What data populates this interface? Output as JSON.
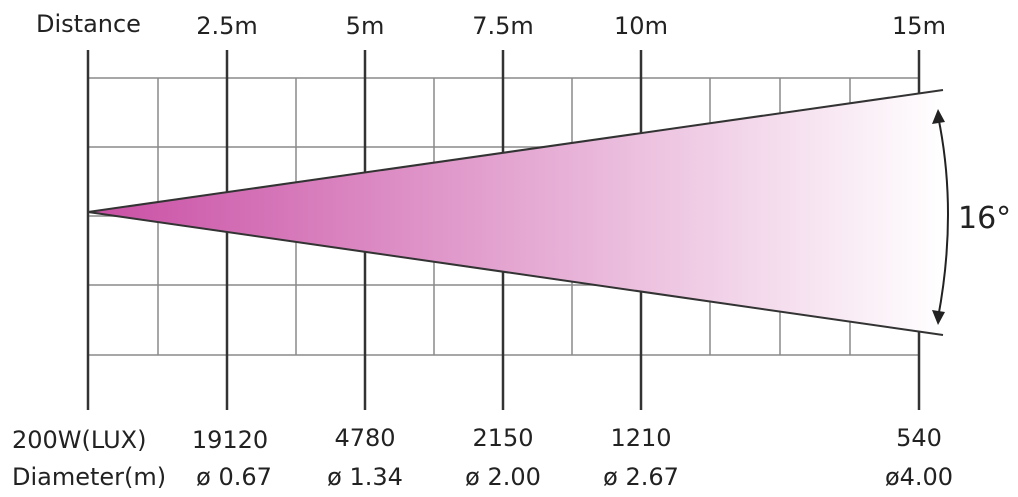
{
  "distance_label": "Distance",
  "distance_marks": [
    "2.5m",
    "5m",
    "7.5m",
    "10m",
    "15m"
  ],
  "lux_label": "200W(LUX)",
  "lux_values": [
    "19120",
    "4780",
    "2150",
    "1210",
    "540"
  ],
  "diameter_label": "Diameter(m)",
  "diameter_values": [
    "ø 0.67",
    "ø 1.34",
    "ø 2.00",
    "ø 2.67",
    "ø4.00"
  ],
  "beam_angle": "16°",
  "beam_gradient": {
    "start_color": "#c94ea4",
    "end_color": "#ffffff"
  }
}
